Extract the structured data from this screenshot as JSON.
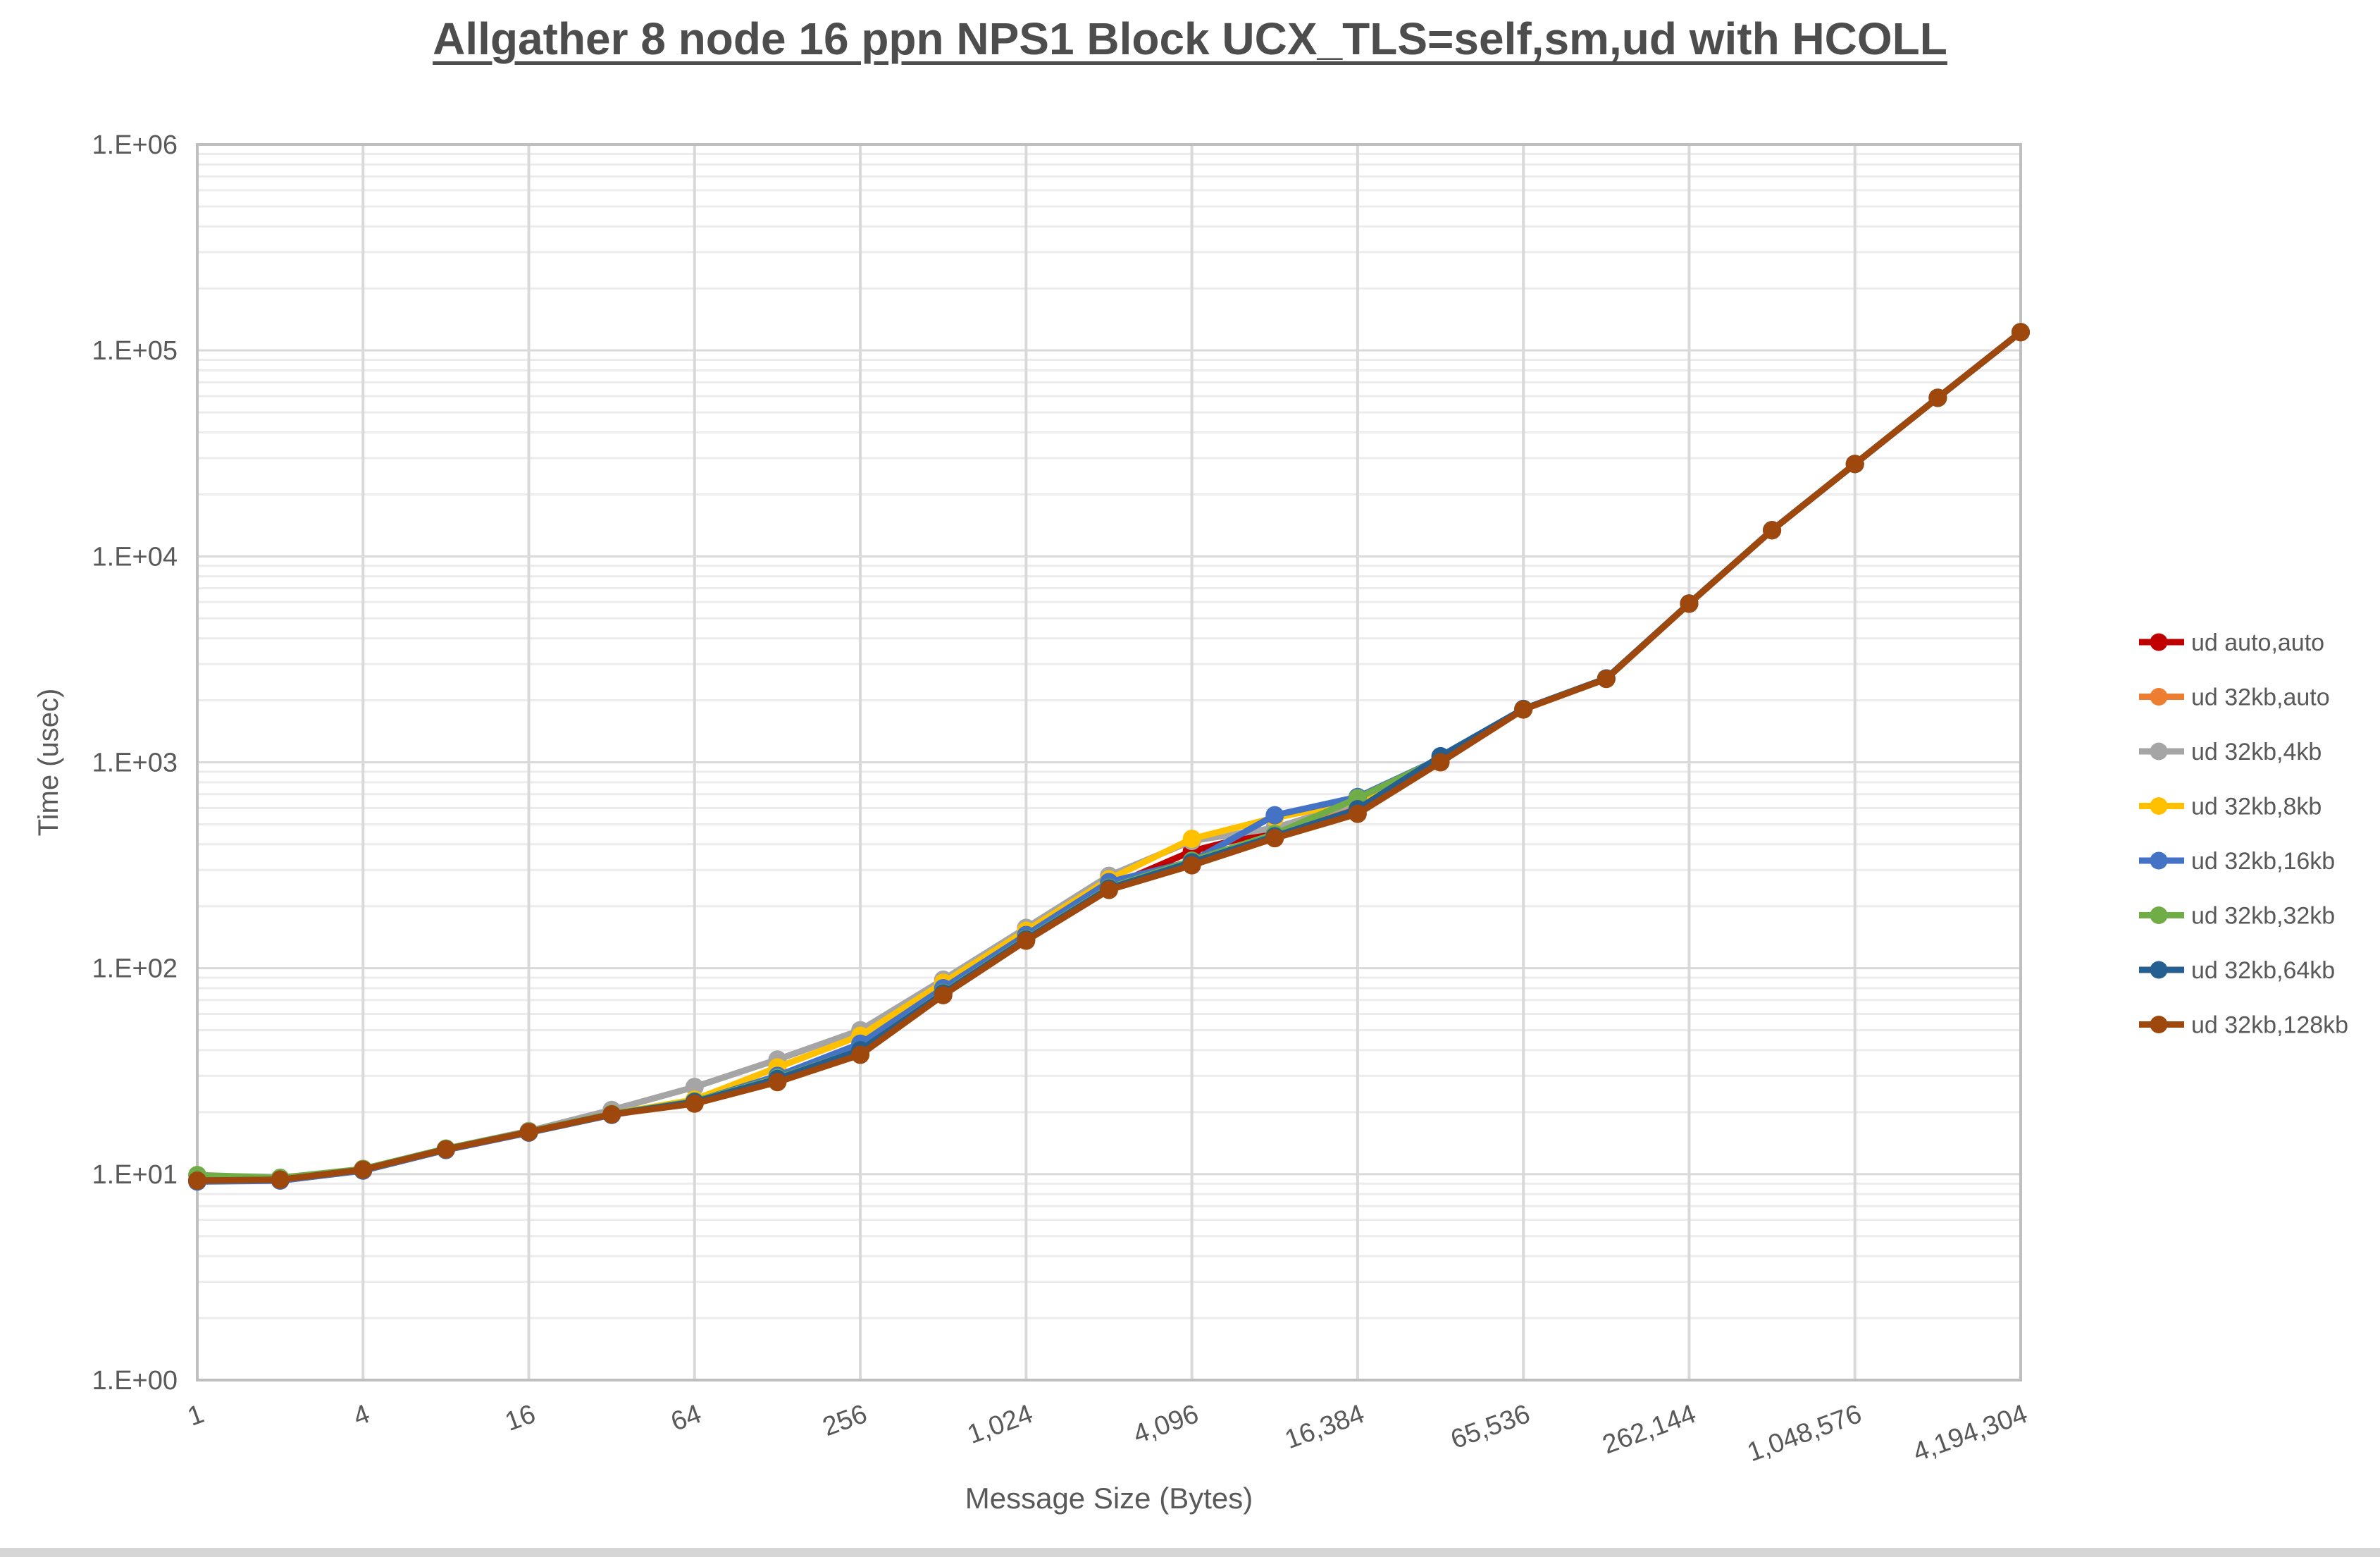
{
  "page": {
    "background": "#FFFFFF",
    "bottom_strip_color": "#D6D6D6"
  },
  "chart_data": {
    "type": "line",
    "title": "Allgather 8 node 16 ppn NPS1 Block UCX_TLS=self,sm,ud with HCOLL",
    "xlabel": "Message Size (Bytes)",
    "ylabel": "Time (usec)",
    "x_scale": "log2",
    "y_scale": "log10",
    "xlim": [
      1,
      4194304
    ],
    "ylim": [
      1,
      1000000
    ],
    "grid": {
      "major": true,
      "minor_log": true
    },
    "legend_position": "right-middle",
    "axis_text_color": "#595959",
    "major_grid_color": "#D9D9D9",
    "minor_grid_color": "#ECECEC",
    "axis_line_color": "#BFBFBF",
    "x": [
      1,
      2,
      4,
      8,
      16,
      32,
      64,
      128,
      256,
      512,
      1024,
      2048,
      4096,
      8192,
      16384,
      32768,
      65536,
      131072,
      262144,
      524288,
      1048576,
      2097152,
      4194304
    ],
    "x_tick_values": [
      1,
      4,
      16,
      64,
      256,
      1024,
      4096,
      16384,
      65536,
      262144,
      1048576,
      4194304
    ],
    "x_tick_labels": [
      "1",
      "4",
      "16",
      "64",
      "256",
      "1,024",
      "4,096",
      "16,384",
      "65,536",
      "262,144",
      "1,048,576",
      "4,194,304"
    ],
    "y_tick_values": [
      1,
      10,
      100,
      1000,
      10000,
      100000,
      1000000
    ],
    "y_tick_labels": [
      "1.E+00",
      "1.E+01",
      "1.E+02",
      "1.E+03",
      "1.E+04",
      "1.E+05",
      "1.E+06"
    ],
    "series": [
      {
        "name": "ud auto,auto",
        "color": "#C00000",
        "values": [
          9.3,
          9.4,
          10.5,
          13.2,
          16,
          19.5,
          22.5,
          29,
          40,
          76,
          140,
          248,
          370,
          470,
          630,
          1030,
          1810,
          2550,
          5900,
          13400,
          28100,
          58900,
          122700
        ]
      },
      {
        "name": "ud 32kb,auto",
        "color": "#ED7D31",
        "values": [
          9.3,
          9.4,
          10.5,
          13.2,
          16,
          19.5,
          22.4,
          29,
          39.5,
          75.5,
          138,
          244,
          332,
          446,
          610,
          1025,
          1808,
          2548,
          5898,
          13398,
          28098,
          58898,
          122698
        ]
      },
      {
        "name": "ud 32kb,4kb",
        "color": "#A5A5A5",
        "values": [
          9.4,
          9.5,
          10.6,
          13.3,
          16.2,
          20.5,
          26.5,
          36,
          50,
          88,
          157,
          281,
          415,
          480,
          640,
          1030,
          1812,
          2552,
          5902,
          13402,
          28102,
          58902,
          122702
        ]
      },
      {
        "name": "ud 32kb,8kb",
        "color": "#FFC000",
        "values": [
          9.3,
          9.4,
          10.5,
          13.2,
          16,
          19.6,
          23,
          33,
          47,
          85,
          152,
          270,
          425,
          538,
          645,
          1020,
          1810,
          2550,
          5900,
          13400,
          28100,
          58900,
          122700
        ]
      },
      {
        "name": "ud 32kb,16kb",
        "color": "#4472C4",
        "values": [
          9.2,
          9.3,
          10.4,
          13.1,
          15.9,
          19.4,
          22.5,
          30,
          43,
          80,
          145,
          262,
          330,
          553,
          678,
          1045,
          1812,
          2552,
          5900,
          13400,
          28100,
          58900,
          122700
        ]
      },
      {
        "name": "ud 32kb,32kb",
        "color": "#70AD47",
        "values": [
          9.9,
          9.6,
          10.6,
          13.3,
          16.1,
          19.6,
          22.6,
          29.3,
          40,
          76,
          139,
          246,
          333,
          448,
          669,
          1042,
          1814,
          2552,
          5902,
          13402,
          28102,
          58902,
          122702
        ]
      },
      {
        "name": "ud 32kb,64kb",
        "color": "#255E91",
        "values": [
          9.3,
          9.4,
          10.5,
          13.2,
          16,
          19.5,
          22.4,
          29,
          40,
          75.5,
          138,
          244,
          327,
          437,
          592,
          1070,
          1815,
          2553,
          5903,
          13403,
          28103,
          58903,
          122703
        ]
      },
      {
        "name": "ud 32kb,128kb",
        "color": "#9E480E",
        "values": [
          9.3,
          9.4,
          10.5,
          13.2,
          16,
          19.5,
          22,
          28,
          38,
          74,
          136,
          240,
          316,
          428,
          562,
          1000,
          1805,
          2540,
          5890,
          13390,
          28090,
          58890,
          122690
        ]
      }
    ]
  }
}
